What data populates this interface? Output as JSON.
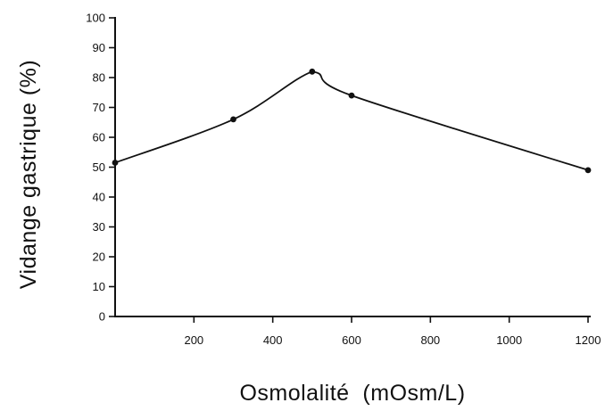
{
  "chart_data": {
    "type": "line",
    "title": "",
    "xlabel": "Osmolalité (mOsm/L)",
    "ylabel": "Vidange gastrique (%)",
    "xlim": [
      0,
      1200
    ],
    "ylim": [
      0,
      100
    ],
    "x_ticks": [
      200,
      400,
      600,
      800,
      1000,
      1200
    ],
    "x_tick_labels": [
      "200",
      "400",
      "600",
      "800",
      "1000",
      "1200"
    ],
    "y_ticks": [
      0,
      10,
      20,
      30,
      40,
      50,
      60,
      70,
      80,
      90,
      100
    ],
    "y_tick_labels": [
      "0",
      "10",
      "20",
      "30",
      "40",
      "50",
      "60",
      "70",
      "80",
      "90",
      "100"
    ],
    "grid": false,
    "series": [
      {
        "x": [
          0,
          300,
          500,
          600,
          1200
        ],
        "y": [
          51.5,
          66,
          82,
          74,
          49
        ]
      }
    ],
    "colors": {
      "ink": "#111111",
      "background": "#ffffff"
    }
  }
}
